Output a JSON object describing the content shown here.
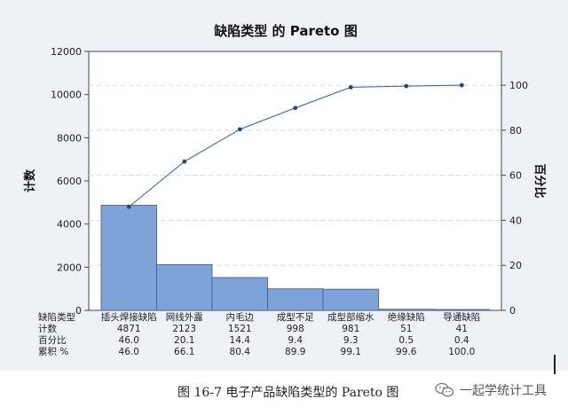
{
  "chart_data": {
    "type": "bar",
    "title": "缺陷类型 的 Pareto 图",
    "ylabel": "计数",
    "y2label": "百分比",
    "ylim": [
      0,
      12000
    ],
    "y2lim": [
      0,
      115
    ],
    "yticks": [
      "0",
      "2000",
      "4000",
      "6000",
      "8000",
      "10000",
      "12000"
    ],
    "y2ticks": [
      "0",
      "20",
      "40",
      "60",
      "80",
      "100"
    ],
    "categories": [
      "插头焊接缺陷",
      "网线外露",
      "内毛边",
      "成型不足",
      "成型部缩水",
      "绝缘缺陷",
      "导通缺陷"
    ],
    "values": [
      4871,
      2123,
      1521,
      998,
      981,
      51,
      41
    ],
    "cumulative_percent": [
      46.0,
      66.1,
      80.4,
      89.9,
      99.1,
      99.6,
      100.0
    ],
    "bar_color": "#7da3d9",
    "line_color": "#2e5c99",
    "grid": "horizontal dashed",
    "table": {
      "row_labels": [
        "缺陷类型",
        "计数",
        "百分比",
        "累积 %"
      ],
      "counts": [
        "4871",
        "2123",
        "1521",
        "998",
        "981",
        "51",
        "41"
      ],
      "percents": [
        "46.0",
        "20.1",
        "14.4",
        "9.4",
        "9.3",
        "0.5",
        "0.4"
      ],
      "cumulative": [
        "46.0",
        "66.1",
        "80.4",
        "89.9",
        "99.1",
        "99.6",
        "100.0"
      ]
    }
  },
  "caption": "图 16-7 电子产品缺陷类型的 Pareto 图",
  "watermark": "一起学统计工具"
}
